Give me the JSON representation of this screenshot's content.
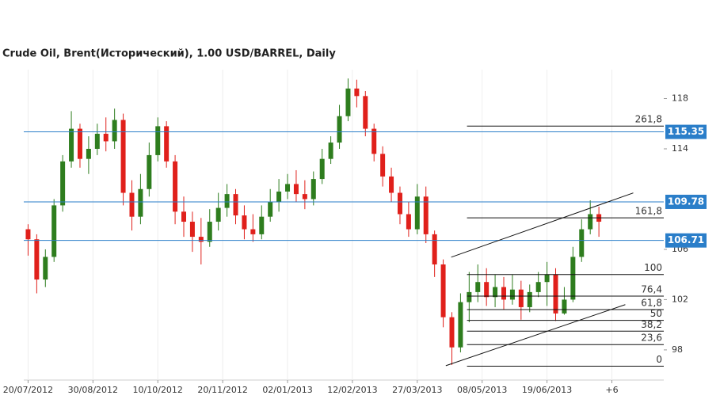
{
  "chart_data": {
    "type": "candlestick",
    "title": "Crude Oil, Brent(Исторический), 1.00 USD/BARREL, Daily",
    "x": [
      0,
      4,
      8,
      12,
      16,
      20,
      24,
      28,
      32,
      36,
      40,
      44,
      48,
      52,
      56,
      60,
      64,
      68,
      72,
      76,
      80,
      84,
      88,
      92,
      96,
      100,
      104,
      108,
      112,
      116,
      120,
      124,
      128,
      132,
      136,
      140,
      144,
      148,
      152,
      156,
      160,
      164,
      168,
      172,
      176,
      180,
      184,
      188,
      192,
      196,
      200,
      204,
      208,
      212,
      216,
      220,
      224,
      228,
      232,
      236,
      240,
      244,
      248,
      252,
      256,
      260,
      264
    ],
    "open": [
      107.6,
      106.8,
      103.6,
      105.4,
      109.5,
      113.0,
      115.6,
      113.2,
      114.0,
      115.2,
      114.6,
      116.3,
      110.5,
      108.6,
      110.8,
      113.5,
      115.8,
      113.0,
      109.0,
      108.2,
      107.0,
      106.6,
      108.2,
      109.3,
      110.4,
      108.7,
      107.6,
      107.2,
      108.6,
      109.8,
      110.6,
      111.2,
      110.4,
      110.0,
      111.6,
      113.2,
      114.5,
      116.6,
      118.8,
      118.2,
      115.6,
      113.6,
      111.8,
      110.5,
      108.8,
      107.6,
      110.2,
      107.2,
      104.8,
      100.6,
      98.2,
      101.8,
      102.6,
      103.4,
      102.2,
      103.0,
      102.0,
      102.8,
      101.4,
      102.6,
      103.4,
      104.0,
      100.9,
      102.0,
      105.4,
      107.6,
      108.8
    ],
    "high": [
      108.0,
      107.2,
      106.0,
      110.0,
      113.5,
      117.0,
      116.0,
      115.0,
      116.0,
      116.5,
      117.2,
      116.8,
      111.5,
      112.0,
      114.5,
      116.5,
      116.2,
      113.5,
      110.2,
      109.0,
      108.5,
      109.2,
      110.5,
      111.2,
      110.8,
      109.5,
      108.8,
      109.5,
      110.8,
      111.6,
      112.0,
      112.3,
      111.5,
      112.2,
      114.0,
      115.0,
      117.5,
      119.6,
      119.5,
      118.6,
      116.0,
      114.2,
      112.5,
      111.0,
      109.8,
      111.2,
      111.0,
      107.5,
      105.2,
      101.0,
      102.5,
      104.2,
      104.8,
      104.5,
      104.0,
      103.8,
      104.0,
      103.5,
      103.2,
      104.2,
      105.0,
      104.5,
      103.0,
      106.2,
      108.4,
      109.9,
      109.4
    ],
    "low": [
      105.5,
      102.5,
      103.0,
      105.0,
      109.0,
      112.5,
      112.5,
      112.0,
      113.5,
      113.8,
      114.0,
      109.5,
      107.5,
      108.0,
      110.2,
      113.0,
      112.5,
      108.0,
      107.0,
      105.8,
      104.8,
      106.2,
      107.5,
      108.6,
      108.0,
      106.8,
      106.6,
      106.8,
      108.2,
      109.0,
      110.0,
      109.8,
      109.2,
      109.5,
      111.2,
      112.8,
      114.0,
      116.2,
      117.3,
      115.0,
      113.0,
      111.0,
      109.8,
      108.0,
      107.0,
      107.2,
      106.5,
      103.8,
      99.8,
      96.8,
      97.8,
      100.2,
      101.8,
      101.5,
      101.4,
      101.2,
      101.6,
      100.4,
      101.0,
      102.2,
      101.5,
      100.3,
      100.8,
      101.8,
      105.0,
      107.2,
      107.0
    ],
    "close": [
      106.8,
      103.6,
      105.4,
      109.5,
      113.0,
      115.6,
      113.2,
      114.0,
      115.2,
      114.6,
      116.3,
      110.5,
      108.6,
      110.8,
      113.5,
      115.8,
      113.0,
      109.0,
      108.2,
      107.0,
      106.6,
      108.2,
      109.3,
      110.4,
      108.7,
      107.6,
      107.2,
      108.6,
      109.8,
      110.6,
      111.2,
      110.4,
      110.0,
      111.6,
      113.2,
      114.5,
      116.6,
      118.8,
      118.2,
      115.6,
      113.6,
      111.8,
      110.5,
      108.8,
      107.6,
      110.2,
      107.2,
      104.8,
      100.6,
      98.2,
      101.8,
      102.6,
      103.4,
      102.2,
      103.0,
      102.0,
      102.8,
      101.4,
      102.6,
      103.4,
      104.0,
      100.9,
      102.0,
      105.4,
      107.6,
      108.8,
      108.2
    ],
    "up_color": "#2e7d1e",
    "down_color": "#e0201b",
    "xlim": [
      -2,
      294
    ],
    "xticks": [
      {
        "value": 0,
        "label": "20/07/2012"
      },
      {
        "value": 30,
        "label": "30/08/2012"
      },
      {
        "value": 60,
        "label": "10/10/2012"
      },
      {
        "value": 90,
        "label": "20/11/2012"
      },
      {
        "value": 120,
        "label": "02/01/2013"
      },
      {
        "value": 150,
        "label": "12/02/2013"
      },
      {
        "value": 180,
        "label": "27/03/2013"
      },
      {
        "value": 210,
        "label": "08/05/2013"
      },
      {
        "value": 240,
        "label": "19/06/2013"
      },
      {
        "value": 270,
        "label": "+6"
      }
    ],
    "ylim": [
      95.6,
      120.3
    ],
    "yticks": [
      98,
      102,
      106,
      114,
      118
    ],
    "grid": true,
    "levels": [
      115.35,
      109.78,
      106.71
    ],
    "level_color": "#2a7ec9",
    "fibonacci": {
      "low": 96.7,
      "high": 104.0,
      "start": 203,
      "levels": [
        {
          "value": 261.8,
          "label": "261,8"
        },
        {
          "value": 161.8,
          "label": "161,8"
        },
        100,
        {
          "value": 76.4,
          "label": "76,4"
        },
        {
          "value": 61.8,
          "label": "61,8"
        },
        50,
        {
          "value": 38.2,
          "label": "38,2"
        },
        {
          "value": 23.6,
          "label": "23,6"
        },
        0
      ]
    },
    "trendlines": [
      {
        "x": [
          195.7,
          279.9
        ],
        "y": [
          105.38,
          110.49
        ]
      },
      {
        "x": [
          193.2,
          276.2
        ],
        "y": [
          96.74,
          101.6
        ]
      }
    ]
  }
}
